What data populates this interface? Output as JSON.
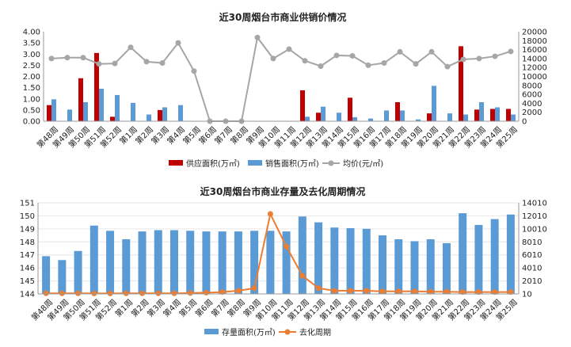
{
  "chart_data": [
    {
      "type": "bar",
      "title": "近30周烟台市商业供销价情况",
      "categories": [
        "第48周",
        "第49周",
        "第50周",
        "第51周",
        "第52周",
        "第1周",
        "第2周",
        "第3周",
        "第4周",
        "第5周",
        "第6周",
        "第7周",
        "第8周",
        "第9周",
        "第10周",
        "第11周",
        "第12周",
        "第13周",
        "第14周",
        "第15周",
        "第16周",
        "第17周",
        "第18周",
        "第19周",
        "第20周",
        "第21周",
        "第22周",
        "第23周",
        "第24周",
        "第25周"
      ],
      "y_left": {
        "min": 0,
        "max": 4.0,
        "ticks": [
          "0.00",
          "0.50",
          "1.00",
          "1.50",
          "2.00",
          "2.50",
          "3.00",
          "3.50",
          "4.00"
        ]
      },
      "y_right": {
        "min": 0,
        "max": 20000,
        "ticks": [
          "0",
          "2000",
          "4000",
          "6000",
          "8000",
          "10000",
          "12000",
          "14000",
          "16000",
          "18000",
          "20000"
        ]
      },
      "legend_position": "bottom",
      "series": [
        {
          "name": "供应面积(万㎡)",
          "kind": "bar",
          "axis": "left",
          "color": "#c00000",
          "values": [
            0.72,
            0,
            1.92,
            3.05,
            0.2,
            0,
            0,
            0.5,
            0,
            0,
            0,
            0,
            0,
            0,
            0,
            0,
            1.38,
            0.38,
            0,
            1.05,
            0,
            0,
            0.85,
            0,
            0.35,
            0,
            3.35,
            0.52,
            0.55,
            0.55
          ]
        },
        {
          "name": "销售面积(万㎡)",
          "kind": "bar",
          "axis": "left",
          "color": "#5b9bd5",
          "values": [
            0.98,
            0.52,
            0.85,
            1.45,
            1.17,
            0.82,
            0.3,
            0.62,
            0.72,
            0,
            0,
            0,
            0,
            0,
            0,
            0,
            0.2,
            0.65,
            0.38,
            0.18,
            0.12,
            0.48,
            0.48,
            0.08,
            1.58,
            0.35,
            0.3,
            0.85,
            0.62,
            0.3
          ]
        },
        {
          "name": "均价(元/㎡)",
          "kind": "line",
          "axis": "right",
          "color": "#a6a6a6",
          "values": [
            14000,
            14200,
            14200,
            12800,
            12900,
            16500,
            13300,
            13000,
            17500,
            11200,
            0,
            0,
            0,
            18700,
            14000,
            16100,
            13500,
            12300,
            14700,
            14600,
            12500,
            13000,
            15500,
            12800,
            15500,
            12200,
            13800,
            14000,
            14500,
            15600
          ]
        }
      ]
    },
    {
      "type": "bar",
      "title": "近30周烟台市商业存量及去化周期情况",
      "categories": [
        "第48周",
        "第49周",
        "第50周",
        "第51周",
        "第52周",
        "第1周",
        "第2周",
        "第3周",
        "第4周",
        "第5周",
        "第6周",
        "第7周",
        "第8周",
        "第9周",
        "第10周",
        "第11周",
        "第12周",
        "第13周",
        "第14周",
        "第15周",
        "第16周",
        "第17周",
        "第18周",
        "第19周",
        "第20周",
        "第21周",
        "第22周",
        "第23周",
        "第24周",
        "第25周"
      ],
      "y_left": {
        "min": 144,
        "max": 151,
        "ticks": [
          "144",
          "145",
          "146",
          "147",
          "148",
          "149",
          "150",
          "151"
        ]
      },
      "y_right": {
        "min": 10,
        "max": 14010,
        "ticks": [
          "10",
          "2010",
          "4010",
          "6010",
          "8010",
          "10010",
          "12010",
          "14010"
        ]
      },
      "legend_position": "bottom",
      "series": [
        {
          "name": "存量面积(万㎡)",
          "kind": "bar",
          "axis": "left",
          "color": "#5b9bd5",
          "values": [
            146.9,
            146.6,
            147.3,
            149.25,
            148.85,
            148.2,
            148.8,
            148.9,
            148.9,
            148.85,
            148.8,
            148.8,
            148.8,
            148.85,
            148.85,
            148.8,
            149.95,
            149.5,
            149.1,
            149.05,
            149.0,
            148.5,
            148.2,
            148.05,
            148.2,
            147.9,
            150.2,
            149.3,
            149.75,
            150.1
          ]
        },
        {
          "name": "去化周期",
          "kind": "line",
          "axis": "right",
          "color": "#ed7d31",
          "values": [
            100,
            100,
            100,
            80,
            80,
            100,
            100,
            100,
            100,
            150,
            200,
            300,
            500,
            900,
            12300,
            7300,
            2800,
            900,
            500,
            500,
            500,
            400,
            400,
            400,
            350,
            350,
            300,
            300,
            300,
            300
          ]
        }
      ]
    }
  ]
}
